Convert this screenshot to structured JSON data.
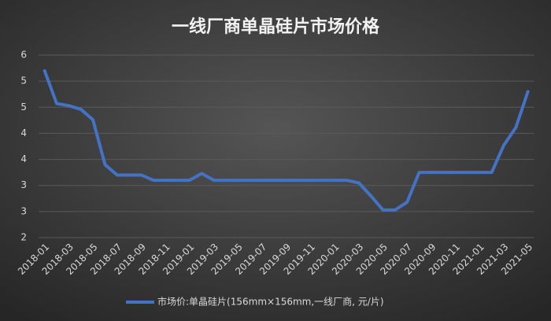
{
  "chart_data": {
    "type": "line",
    "title": "一线厂商单晶硅片市场价格",
    "categories": [
      "2018-01",
      null,
      "2018-03",
      null,
      "2018-05",
      null,
      "2018-07",
      null,
      "2018-09",
      null,
      "2018-11",
      null,
      "2019-01",
      null,
      "2019-03",
      null,
      "2019-05",
      null,
      "2019-07",
      null,
      "2019-09",
      null,
      "2019-11",
      null,
      "2020-01",
      null,
      "2020-03",
      null,
      "2020-05",
      null,
      "2020-07",
      null,
      "2020-09",
      null,
      "2020-11",
      null,
      "2021-01",
      null,
      "2021-03",
      null,
      "2021-05"
    ],
    "series": [
      {
        "name": "市场价:单晶硅片(156mm×156mm,一线厂商,  元/片)",
        "color": "#4472c4",
        "values": [
          5.6,
          4.97,
          4.93,
          4.86,
          4.66,
          3.8,
          3.6,
          3.6,
          3.6,
          3.5,
          3.5,
          3.5,
          3.5,
          3.63,
          3.5,
          3.5,
          3.5,
          3.5,
          3.5,
          3.5,
          3.5,
          3.5,
          3.5,
          3.5,
          3.5,
          3.5,
          3.45,
          3.2,
          2.93,
          2.93,
          3.08,
          3.65,
          3.65,
          3.65,
          3.65,
          3.65,
          3.65,
          3.65,
          4.17,
          4.51,
          5.2
        ]
      }
    ],
    "ylim": [
      2.4,
      5.9
    ],
    "yticks": [
      {
        "value": 2.4,
        "label": "2"
      },
      {
        "value": 2.9,
        "label": "3"
      },
      {
        "value": 3.4,
        "label": "3"
      },
      {
        "value": 3.9,
        "label": "4"
      },
      {
        "value": 4.4,
        "label": "4"
      },
      {
        "value": 4.9,
        "label": "5"
      },
      {
        "value": 5.4,
        "label": "5"
      },
      {
        "value": 5.9,
        "label": "6"
      }
    ],
    "grid": true
  }
}
